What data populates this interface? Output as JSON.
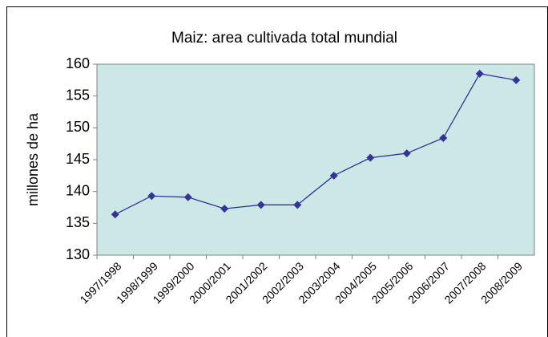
{
  "chart_data": {
    "type": "line",
    "title": "Maiz: area cultivada total  mundial",
    "y_label": "millones de ha",
    "categories": [
      "1997/1998",
      "1998/1999",
      "1999/2000",
      "2000/2001",
      "2001/2002",
      "2002/2003",
      "2003/2004",
      "2004/2005",
      "2005/2006",
      "2006/2007",
      "2007/2008",
      "2008/2009"
    ],
    "series": [
      {
        "name": "Maiz",
        "color": "#333399",
        "values": [
          136.4,
          139.3,
          139.1,
          137.3,
          137.9,
          137.9,
          142.5,
          145.3,
          146.0,
          148.4,
          158.5,
          157.5
        ]
      }
    ],
    "ylim": [
      130,
      160
    ],
    "yticks": [
      130,
      135,
      140,
      145,
      150,
      155,
      160
    ],
    "grid": false,
    "plot_background": "#cce8e6"
  }
}
